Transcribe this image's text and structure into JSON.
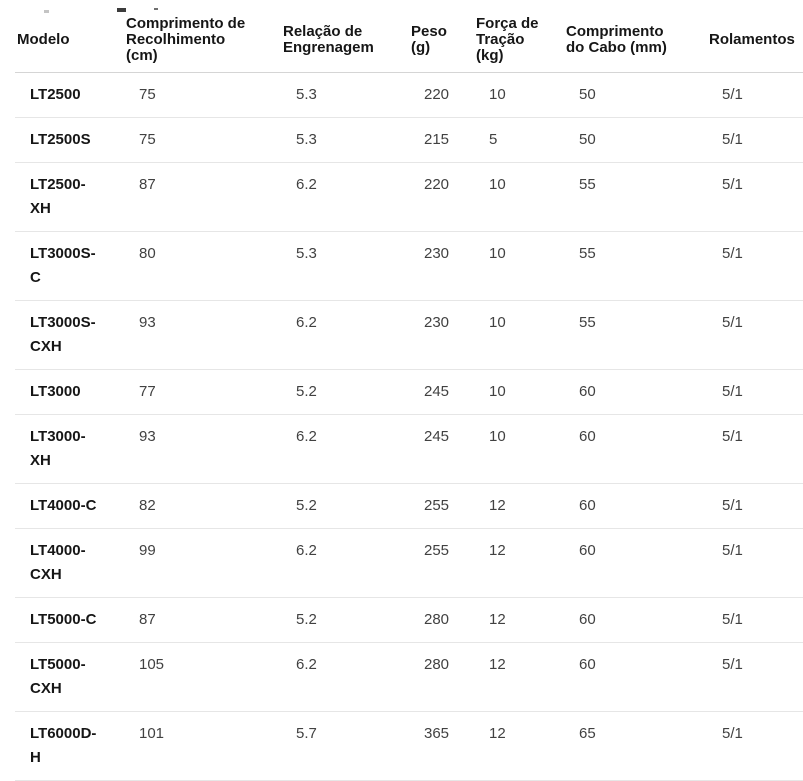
{
  "table": {
    "columns": [
      {
        "id": "model",
        "label": "Modelo"
      },
      {
        "id": "recolhimento",
        "label": "Comprimento de\nRecolhimento\n(cm)"
      },
      {
        "id": "relacao",
        "label": "Relação de\nEngrenagem"
      },
      {
        "id": "peso",
        "label": "Peso\n(g)"
      },
      {
        "id": "forca",
        "label": "Força de\nTração\n(kg)"
      },
      {
        "id": "cabo",
        "label": "Comprimento\ndo Cabo (mm)"
      },
      {
        "id": "rolamentos",
        "label": "Rolamentos"
      }
    ],
    "rows": [
      {
        "model": "LT2500",
        "recolhimento": "75",
        "relacao": "5.3",
        "peso": "220",
        "forca": "10",
        "cabo": "50",
        "rolamentos": "5/1"
      },
      {
        "model": "LT2500S",
        "recolhimento": "75",
        "relacao": "5.3",
        "peso": "215",
        "forca": "5",
        "cabo": "50",
        "rolamentos": "5/1"
      },
      {
        "model": "LT2500-\nXH",
        "recolhimento": "87",
        "relacao": "6.2",
        "peso": "220",
        "forca": "10",
        "cabo": "55",
        "rolamentos": "5/1"
      },
      {
        "model": "LT3000S-\nC",
        "recolhimento": "80",
        "relacao": "5.3",
        "peso": "230",
        "forca": "10",
        "cabo": "55",
        "rolamentos": "5/1"
      },
      {
        "model": "LT3000S-\nCXH",
        "recolhimento": "93",
        "relacao": "6.2",
        "peso": "230",
        "forca": "10",
        "cabo": "55",
        "rolamentos": "5/1"
      },
      {
        "model": "LT3000",
        "recolhimento": "77",
        "relacao": "5.2",
        "peso": "245",
        "forca": "10",
        "cabo": "60",
        "rolamentos": "5/1"
      },
      {
        "model": "LT3000-\nXH",
        "recolhimento": "93",
        "relacao": "6.2",
        "peso": "245",
        "forca": "10",
        "cabo": "60",
        "rolamentos": "5/1"
      },
      {
        "model": "LT4000-C",
        "recolhimento": "82",
        "relacao": "5.2",
        "peso": "255",
        "forca": "12",
        "cabo": "60",
        "rolamentos": "5/1"
      },
      {
        "model": "LT4000-\nCXH",
        "recolhimento": "99",
        "relacao": "6.2",
        "peso": "255",
        "forca": "12",
        "cabo": "60",
        "rolamentos": "5/1"
      },
      {
        "model": "LT5000-C",
        "recolhimento": "87",
        "relacao": "5.2",
        "peso": "280",
        "forca": "12",
        "cabo": "60",
        "rolamentos": "5/1"
      },
      {
        "model": "LT5000-\nCXH",
        "recolhimento": "105",
        "relacao": "6.2",
        "peso": "280",
        "forca": "12",
        "cabo": "60",
        "rolamentos": "5/1"
      },
      {
        "model": "LT6000D-\nH",
        "recolhimento": "101",
        "relacao": "5.7",
        "peso": "365",
        "forca": "12",
        "cabo": "65",
        "rolamentos": "5/1"
      }
    ]
  },
  "colors": {
    "background": "#ffffff",
    "header_text": "#161616",
    "model_text": "#161616",
    "cell_text": "#414141",
    "header_border": "#d5d5d5",
    "row_border": "#e6e6e6"
  }
}
